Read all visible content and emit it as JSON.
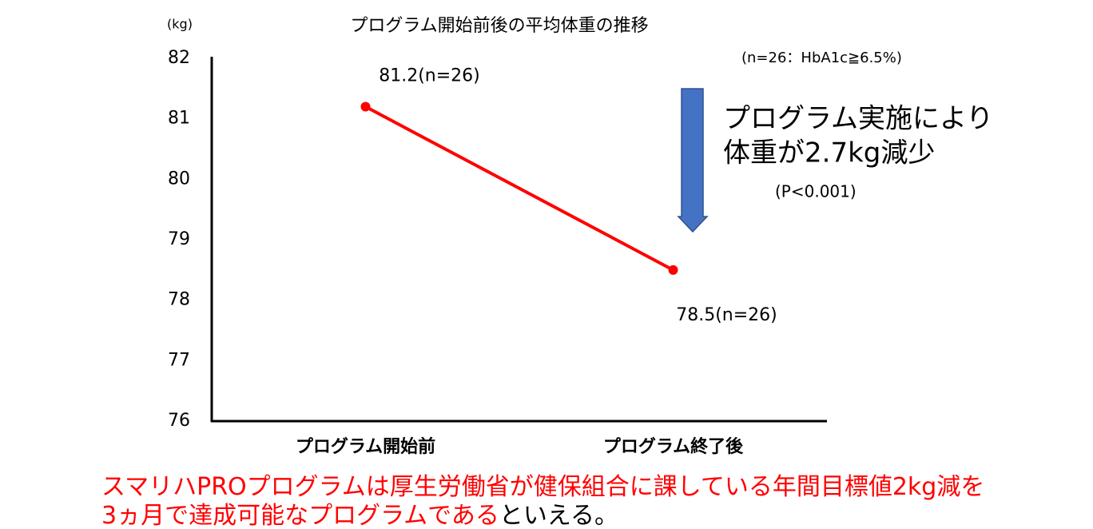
{
  "chart_data": {
    "type": "line",
    "title": "プログラム開始前後の平均体重の推移",
    "y_label": "(kg)",
    "categories": [
      "プログラム開始前",
      "プログラム終了後"
    ],
    "values": [
      81.2,
      78.5
    ],
    "value_labels": [
      "81.2(n=26)",
      "78.5(n=26)"
    ],
    "color": "#ff0000",
    "ylim": [
      76,
      82
    ],
    "yticks": [
      76,
      77,
      78,
      79,
      80,
      81,
      82
    ],
    "annotations": [
      {
        "text": "(n=26：HbA1c≧6.5%)",
        "color": "#000000"
      },
      {
        "text": "プログラム実施により",
        "color": "#000000"
      },
      {
        "text": "体重が2.7kg減少",
        "color": "#ff0000"
      },
      {
        "text": "(P<0.001)",
        "color": "#000000"
      }
    ],
    "footnote": [
      [
        {
          "text": "スマリハPROプログラムは厚生労働省が健保組合に課している年間目標値2kg減を",
          "color": "#ff0000"
        }
      ],
      [
        {
          "text": "3ヵ月で達成可能なプログラムである",
          "color": "#ff0000"
        },
        {
          "text": "といえる。",
          "color": "#000000"
        }
      ]
    ]
  }
}
